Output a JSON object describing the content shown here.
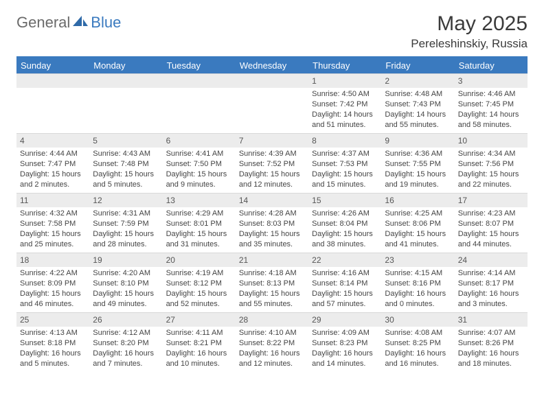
{
  "brand": {
    "general": "General",
    "blue": "Blue"
  },
  "title": "May 2025",
  "location": "Pereleshinskiy, Russia",
  "colors": {
    "header_bg": "#3a7abf",
    "day_number_bg": "#ececec",
    "border": "#d8d8d8",
    "text": "#333333",
    "brand_gray": "#6a6a6a",
    "brand_blue": "#3a7abf"
  },
  "days_of_week": [
    "Sunday",
    "Monday",
    "Tuesday",
    "Wednesday",
    "Thursday",
    "Friday",
    "Saturday"
  ],
  "weeks": [
    [
      null,
      null,
      null,
      null,
      {
        "n": "1",
        "sunrise": "Sunrise: 4:50 AM",
        "sunset": "Sunset: 7:42 PM",
        "daylight1": "Daylight: 14 hours",
        "daylight2": "and 51 minutes."
      },
      {
        "n": "2",
        "sunrise": "Sunrise: 4:48 AM",
        "sunset": "Sunset: 7:43 PM",
        "daylight1": "Daylight: 14 hours",
        "daylight2": "and 55 minutes."
      },
      {
        "n": "3",
        "sunrise": "Sunrise: 4:46 AM",
        "sunset": "Sunset: 7:45 PM",
        "daylight1": "Daylight: 14 hours",
        "daylight2": "and 58 minutes."
      }
    ],
    [
      {
        "n": "4",
        "sunrise": "Sunrise: 4:44 AM",
        "sunset": "Sunset: 7:47 PM",
        "daylight1": "Daylight: 15 hours",
        "daylight2": "and 2 minutes."
      },
      {
        "n": "5",
        "sunrise": "Sunrise: 4:43 AM",
        "sunset": "Sunset: 7:48 PM",
        "daylight1": "Daylight: 15 hours",
        "daylight2": "and 5 minutes."
      },
      {
        "n": "6",
        "sunrise": "Sunrise: 4:41 AM",
        "sunset": "Sunset: 7:50 PM",
        "daylight1": "Daylight: 15 hours",
        "daylight2": "and 9 minutes."
      },
      {
        "n": "7",
        "sunrise": "Sunrise: 4:39 AM",
        "sunset": "Sunset: 7:52 PM",
        "daylight1": "Daylight: 15 hours",
        "daylight2": "and 12 minutes."
      },
      {
        "n": "8",
        "sunrise": "Sunrise: 4:37 AM",
        "sunset": "Sunset: 7:53 PM",
        "daylight1": "Daylight: 15 hours",
        "daylight2": "and 15 minutes."
      },
      {
        "n": "9",
        "sunrise": "Sunrise: 4:36 AM",
        "sunset": "Sunset: 7:55 PM",
        "daylight1": "Daylight: 15 hours",
        "daylight2": "and 19 minutes."
      },
      {
        "n": "10",
        "sunrise": "Sunrise: 4:34 AM",
        "sunset": "Sunset: 7:56 PM",
        "daylight1": "Daylight: 15 hours",
        "daylight2": "and 22 minutes."
      }
    ],
    [
      {
        "n": "11",
        "sunrise": "Sunrise: 4:32 AM",
        "sunset": "Sunset: 7:58 PM",
        "daylight1": "Daylight: 15 hours",
        "daylight2": "and 25 minutes."
      },
      {
        "n": "12",
        "sunrise": "Sunrise: 4:31 AM",
        "sunset": "Sunset: 7:59 PM",
        "daylight1": "Daylight: 15 hours",
        "daylight2": "and 28 minutes."
      },
      {
        "n": "13",
        "sunrise": "Sunrise: 4:29 AM",
        "sunset": "Sunset: 8:01 PM",
        "daylight1": "Daylight: 15 hours",
        "daylight2": "and 31 minutes."
      },
      {
        "n": "14",
        "sunrise": "Sunrise: 4:28 AM",
        "sunset": "Sunset: 8:03 PM",
        "daylight1": "Daylight: 15 hours",
        "daylight2": "and 35 minutes."
      },
      {
        "n": "15",
        "sunrise": "Sunrise: 4:26 AM",
        "sunset": "Sunset: 8:04 PM",
        "daylight1": "Daylight: 15 hours",
        "daylight2": "and 38 minutes."
      },
      {
        "n": "16",
        "sunrise": "Sunrise: 4:25 AM",
        "sunset": "Sunset: 8:06 PM",
        "daylight1": "Daylight: 15 hours",
        "daylight2": "and 41 minutes."
      },
      {
        "n": "17",
        "sunrise": "Sunrise: 4:23 AM",
        "sunset": "Sunset: 8:07 PM",
        "daylight1": "Daylight: 15 hours",
        "daylight2": "and 44 minutes."
      }
    ],
    [
      {
        "n": "18",
        "sunrise": "Sunrise: 4:22 AM",
        "sunset": "Sunset: 8:09 PM",
        "daylight1": "Daylight: 15 hours",
        "daylight2": "and 46 minutes."
      },
      {
        "n": "19",
        "sunrise": "Sunrise: 4:20 AM",
        "sunset": "Sunset: 8:10 PM",
        "daylight1": "Daylight: 15 hours",
        "daylight2": "and 49 minutes."
      },
      {
        "n": "20",
        "sunrise": "Sunrise: 4:19 AM",
        "sunset": "Sunset: 8:12 PM",
        "daylight1": "Daylight: 15 hours",
        "daylight2": "and 52 minutes."
      },
      {
        "n": "21",
        "sunrise": "Sunrise: 4:18 AM",
        "sunset": "Sunset: 8:13 PM",
        "daylight1": "Daylight: 15 hours",
        "daylight2": "and 55 minutes."
      },
      {
        "n": "22",
        "sunrise": "Sunrise: 4:16 AM",
        "sunset": "Sunset: 8:14 PM",
        "daylight1": "Daylight: 15 hours",
        "daylight2": "and 57 minutes."
      },
      {
        "n": "23",
        "sunrise": "Sunrise: 4:15 AM",
        "sunset": "Sunset: 8:16 PM",
        "daylight1": "Daylight: 16 hours",
        "daylight2": "and 0 minutes."
      },
      {
        "n": "24",
        "sunrise": "Sunrise: 4:14 AM",
        "sunset": "Sunset: 8:17 PM",
        "daylight1": "Daylight: 16 hours",
        "daylight2": "and 3 minutes."
      }
    ],
    [
      {
        "n": "25",
        "sunrise": "Sunrise: 4:13 AM",
        "sunset": "Sunset: 8:18 PM",
        "daylight1": "Daylight: 16 hours",
        "daylight2": "and 5 minutes."
      },
      {
        "n": "26",
        "sunrise": "Sunrise: 4:12 AM",
        "sunset": "Sunset: 8:20 PM",
        "daylight1": "Daylight: 16 hours",
        "daylight2": "and 7 minutes."
      },
      {
        "n": "27",
        "sunrise": "Sunrise: 4:11 AM",
        "sunset": "Sunset: 8:21 PM",
        "daylight1": "Daylight: 16 hours",
        "daylight2": "and 10 minutes."
      },
      {
        "n": "28",
        "sunrise": "Sunrise: 4:10 AM",
        "sunset": "Sunset: 8:22 PM",
        "daylight1": "Daylight: 16 hours",
        "daylight2": "and 12 minutes."
      },
      {
        "n": "29",
        "sunrise": "Sunrise: 4:09 AM",
        "sunset": "Sunset: 8:23 PM",
        "daylight1": "Daylight: 16 hours",
        "daylight2": "and 14 minutes."
      },
      {
        "n": "30",
        "sunrise": "Sunrise: 4:08 AM",
        "sunset": "Sunset: 8:25 PM",
        "daylight1": "Daylight: 16 hours",
        "daylight2": "and 16 minutes."
      },
      {
        "n": "31",
        "sunrise": "Sunrise: 4:07 AM",
        "sunset": "Sunset: 8:26 PM",
        "daylight1": "Daylight: 16 hours",
        "daylight2": "and 18 minutes."
      }
    ]
  ]
}
